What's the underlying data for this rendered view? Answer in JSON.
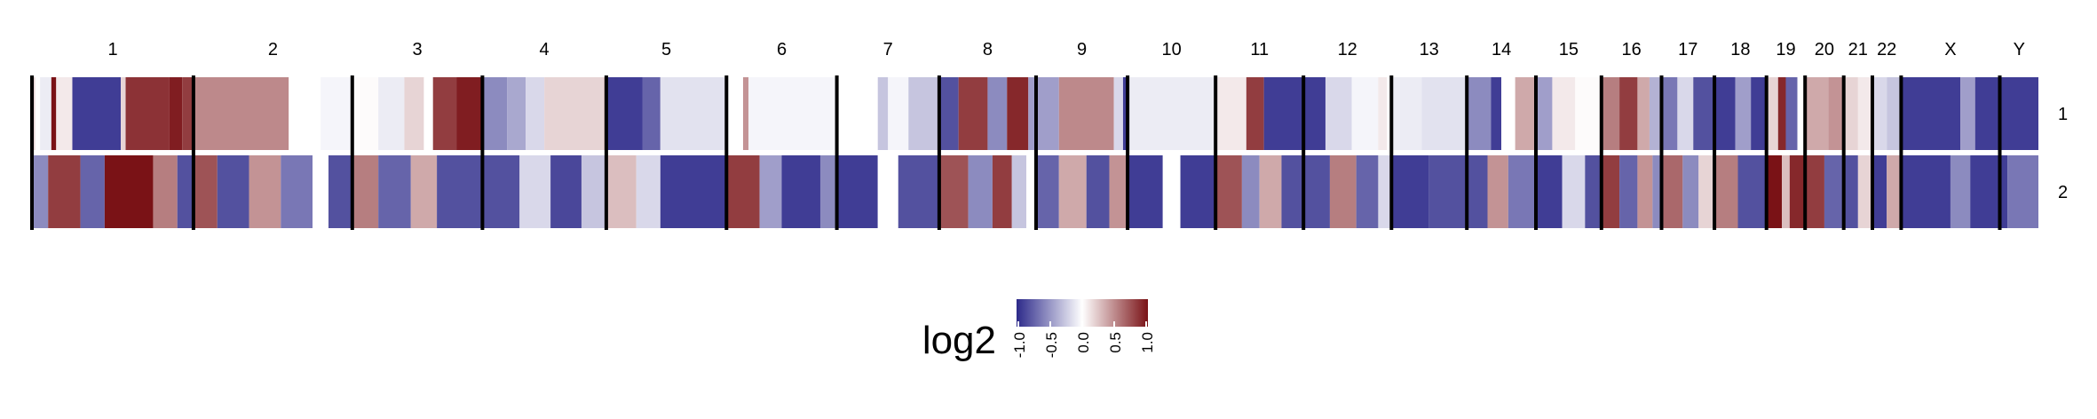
{
  "chart_data": {
    "type": "heatmap",
    "title": "",
    "chromosomes": [
      {
        "name": "1",
        "weight": 180
      },
      {
        "name": "2",
        "weight": 177
      },
      {
        "name": "3",
        "weight": 145
      },
      {
        "name": "4",
        "weight": 138
      },
      {
        "name": "5",
        "weight": 134
      },
      {
        "name": "6",
        "weight": 123
      },
      {
        "name": "7",
        "weight": 114
      },
      {
        "name": "8",
        "weight": 108
      },
      {
        "name": "9",
        "weight": 102
      },
      {
        "name": "10",
        "weight": 98
      },
      {
        "name": "11",
        "weight": 98
      },
      {
        "name": "12",
        "weight": 98
      },
      {
        "name": "13",
        "weight": 84
      },
      {
        "name": "14",
        "weight": 77
      },
      {
        "name": "15",
        "weight": 73
      },
      {
        "name": "16",
        "weight": 67
      },
      {
        "name": "17",
        "weight": 59
      },
      {
        "name": "18",
        "weight": 58
      },
      {
        "name": "19",
        "weight": 43
      },
      {
        "name": "20",
        "weight": 43
      },
      {
        "name": "21",
        "weight": 32
      },
      {
        "name": "22",
        "weight": 32
      },
      {
        "name": "X",
        "weight": 110
      },
      {
        "name": "Y",
        "weight": 43
      }
    ],
    "rows": [
      "1",
      "2"
    ],
    "row_segments": [
      [
        [
          [
            0,
            0.2
          ],
          [
            0.02,
            0.0
          ],
          [
            0.05,
            -0.1
          ],
          [
            0.12,
            1.1
          ],
          [
            0.15,
            0.1
          ],
          [
            0.25,
            -1.0
          ],
          [
            0.55,
            0.2
          ],
          [
            0.58,
            0.95
          ],
          [
            0.85,
            1.05
          ],
          [
            0.93,
            0.9
          ]
        ],
        [
          [
            0,
            0.55
          ],
          [
            0.6,
            0.0
          ],
          [
            0.8,
            -0.05
          ]
        ],
        [
          [
            0,
            0.02
          ],
          [
            0.2,
            -0.1
          ],
          [
            0.4,
            0.2
          ],
          [
            0.55,
            0.0
          ],
          [
            0.62,
            0.9
          ],
          [
            0.8,
            1.05
          ]
        ],
        [
          [
            0,
            -0.6
          ],
          [
            0.2,
            -0.45
          ],
          [
            0.35,
            -0.2
          ],
          [
            0.5,
            0.2
          ],
          [
            0.98,
            0.3
          ]
        ],
        [
          [
            0,
            -1.0
          ],
          [
            0.3,
            -0.8
          ],
          [
            0.45,
            -0.15
          ]
        ],
        [
          [
            0,
            0.0
          ],
          [
            0.15,
            0.5
          ],
          [
            0.2,
            -0.05
          ]
        ],
        [
          [
            0,
            0.0
          ],
          [
            0.4,
            -0.3
          ],
          [
            0.5,
            -0.05
          ],
          [
            0.7,
            -0.3
          ]
        ],
        [
          [
            0,
            -0.9
          ],
          [
            0.2,
            0.9
          ],
          [
            0.5,
            -0.6
          ],
          [
            0.7,
            1.0
          ],
          [
            0.92,
            -0.5
          ]
        ],
        [
          [
            0,
            -0.5
          ],
          [
            0.25,
            0.55
          ],
          [
            0.85,
            -0.2
          ],
          [
            0.95,
            -1.0
          ]
        ],
        [
          [
            0,
            -0.1
          ],
          [
            0.7,
            -0.1
          ]
        ],
        [
          [
            0,
            0.1
          ],
          [
            0.35,
            0.9
          ],
          [
            0.55,
            -1.0
          ]
        ],
        [
          [
            0,
            -1.0
          ],
          [
            0.25,
            -0.2
          ],
          [
            0.55,
            -0.05
          ],
          [
            0.85,
            0.1
          ],
          [
            0.95,
            0.0
          ]
        ],
        [
          [
            0,
            -0.1
          ],
          [
            0.4,
            -0.15
          ]
        ],
        [
          [
            0,
            -0.6
          ],
          [
            0.35,
            -1.0
          ],
          [
            0.5,
            0.0
          ],
          [
            0.7,
            0.4
          ]
        ],
        [
          [
            0,
            -0.5
          ],
          [
            0.25,
            0.1
          ],
          [
            0.6,
            0.02
          ]
        ],
        [
          [
            0,
            0.6
          ],
          [
            0.3,
            0.9
          ],
          [
            0.6,
            0.4
          ],
          [
            0.8,
            -0.4
          ]
        ],
        [
          [
            0,
            -0.7
          ],
          [
            0.3,
            -0.2
          ],
          [
            0.6,
            -0.9
          ]
        ],
        [
          [
            0,
            -1.0
          ],
          [
            0.4,
            -0.5
          ],
          [
            0.7,
            -1.0
          ]
        ],
        [
          [
            0,
            0.2
          ],
          [
            0.3,
            1.0
          ],
          [
            0.5,
            -0.8
          ],
          [
            0.8,
            0.0
          ]
        ],
        [
          [
            0,
            0.4
          ],
          [
            0.6,
            0.5
          ]
        ],
        [
          [
            0,
            0.2
          ],
          [
            0.5,
            0.1
          ]
        ],
        [
          [
            0,
            -0.2
          ],
          [
            0.5,
            -0.3
          ]
        ],
        [
          [
            0,
            -1.0
          ],
          [
            0.6,
            -0.5
          ],
          [
            0.75,
            -1.0
          ]
        ],
        [
          [
            0,
            -1.0
          ]
        ]
      ],
      [
        [
          [
            0,
            -0.6
          ],
          [
            0.1,
            0.9
          ],
          [
            0.3,
            -0.8
          ],
          [
            0.45,
            1.1
          ],
          [
            0.75,
            0.6
          ],
          [
            0.9,
            -0.9
          ]
        ],
        [
          [
            0,
            0.8
          ],
          [
            0.15,
            -0.9
          ],
          [
            0.35,
            0.5
          ],
          [
            0.55,
            -0.7
          ],
          [
            0.75,
            0.0
          ],
          [
            0.85,
            -0.9
          ]
        ],
        [
          [
            0,
            0.6
          ],
          [
            0.2,
            -0.8
          ],
          [
            0.45,
            0.4
          ],
          [
            0.65,
            -0.9
          ]
        ],
        [
          [
            0,
            -0.9
          ],
          [
            0.3,
            -0.2
          ],
          [
            0.55,
            -0.95
          ],
          [
            0.8,
            -0.3
          ]
        ],
        [
          [
            0,
            0.3
          ],
          [
            0.25,
            -0.2
          ],
          [
            0.45,
            -1.0
          ]
        ],
        [
          [
            0,
            0.9
          ],
          [
            0.3,
            -0.5
          ],
          [
            0.5,
            -1.0
          ],
          [
            0.85,
            -0.6
          ]
        ],
        [
          [
            0,
            -1.0
          ],
          [
            0.4,
            0.0
          ],
          [
            0.6,
            -0.9
          ]
        ],
        [
          [
            0,
            0.8
          ],
          [
            0.3,
            -0.6
          ],
          [
            0.55,
            0.9
          ],
          [
            0.75,
            -0.3
          ],
          [
            0.9,
            0.0
          ]
        ],
        [
          [
            0,
            -0.8
          ],
          [
            0.25,
            0.4
          ],
          [
            0.55,
            -0.9
          ],
          [
            0.8,
            0.5
          ]
        ],
        [
          [
            0,
            -1.0
          ],
          [
            0.4,
            0.0
          ],
          [
            0.6,
            -1.0
          ]
        ],
        [
          [
            0,
            0.8
          ],
          [
            0.3,
            -0.6
          ],
          [
            0.5,
            0.4
          ],
          [
            0.75,
            -0.9
          ]
        ],
        [
          [
            0,
            -0.9
          ],
          [
            0.3,
            0.6
          ],
          [
            0.6,
            -0.8
          ],
          [
            0.85,
            -0.2
          ]
        ],
        [
          [
            0,
            -1.0
          ],
          [
            0.5,
            -0.9
          ]
        ],
        [
          [
            0,
            -0.9
          ],
          [
            0.3,
            0.5
          ],
          [
            0.6,
            -0.7
          ]
        ],
        [
          [
            0,
            -1.0
          ],
          [
            0.4,
            -0.2
          ],
          [
            0.75,
            -0.9
          ]
        ],
        [
          [
            0,
            0.9
          ],
          [
            0.3,
            -0.8
          ],
          [
            0.6,
            0.5
          ],
          [
            0.85,
            -0.6
          ]
        ],
        [
          [
            0,
            0.7
          ],
          [
            0.4,
            -0.6
          ],
          [
            0.7,
            0.2
          ]
        ],
        [
          [
            0,
            0.6
          ],
          [
            0.45,
            -0.9
          ]
        ],
        [
          [
            0,
            1.1
          ],
          [
            0.4,
            0.3
          ],
          [
            0.6,
            1.0
          ]
        ],
        [
          [
            0,
            0.9
          ],
          [
            0.5,
            -0.8
          ]
        ],
        [
          [
            0,
            -0.9
          ],
          [
            0.5,
            0.2
          ]
        ],
        [
          [
            0,
            -1.0
          ],
          [
            0.5,
            0.4
          ]
        ],
        [
          [
            0,
            -1.0
          ],
          [
            0.5,
            -0.6
          ],
          [
            0.7,
            -1.0
          ]
        ],
        [
          [
            0,
            -1.0
          ],
          [
            0.2,
            -0.7
          ]
        ]
      ]
    ],
    "legend": {
      "title": "log2",
      "ticks": [
        "-1.0",
        "-0.5",
        "0.0",
        "0.5",
        "1.0"
      ],
      "range": [
        -1.1,
        1.1
      ],
      "low_color": "#2d2a8a",
      "mid_color": "#ffffff",
      "high_color": "#7a1216"
    }
  }
}
